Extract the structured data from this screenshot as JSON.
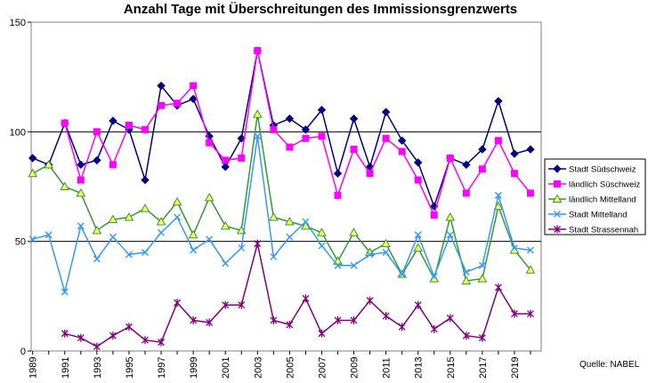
{
  "chart_data": {
    "type": "line",
    "title": "Anzahl Tage mit Überschreitungen des Immissionsgrenzwerts",
    "xlabel": "",
    "ylabel": "",
    "source": "Quelle: NABEL",
    "ylim": [
      0,
      150
    ],
    "yticks": [
      "0",
      "50",
      "100",
      "150"
    ],
    "gridlines_y": [
      50,
      100
    ],
    "x": [
      1989,
      1990,
      1991,
      1992,
      1993,
      1994,
      1995,
      1996,
      1997,
      1998,
      1999,
      2000,
      2001,
      2002,
      2003,
      2004,
      2005,
      2006,
      2007,
      2008,
      2009,
      2010,
      2011,
      2012,
      2013,
      2014,
      2015,
      2016,
      2017,
      2018,
      2019,
      2020
    ],
    "xtick_labels": [
      "1989",
      "1991",
      "1993",
      "1995",
      "1997",
      "1999",
      "2001",
      "2003",
      "2005",
      "2007",
      "2009",
      "2011",
      "2013",
      "2015",
      "2017",
      "2019"
    ],
    "legend_position": "right",
    "series": [
      {
        "name": "Stadt Südschweiz",
        "color": "#000080",
        "marker": "diamond",
        "values": [
          88,
          85,
          104,
          85,
          87,
          105,
          101,
          78,
          121,
          112,
          115,
          98,
          84,
          97,
          137,
          103,
          106,
          101,
          110,
          81,
          106,
          84,
          109,
          96,
          86,
          66,
          88,
          85,
          92,
          114,
          90,
          92
        ]
      },
      {
        "name": "ländlich Süschweiz",
        "color": "#ff00ff",
        "marker": "square",
        "values": [
          null,
          null,
          104,
          78,
          100,
          85,
          103,
          101,
          112,
          113,
          121,
          95,
          87,
          88,
          137,
          101,
          93,
          97,
          98,
          71,
          92,
          81,
          97,
          91,
          78,
          62,
          88,
          72,
          83,
          96,
          81,
          72
        ]
      },
      {
        "name": "ländlich Mittelland",
        "color": "#339933",
        "marker": "triangle",
        "values": [
          81,
          85,
          75,
          72,
          55,
          60,
          61,
          65,
          59,
          68,
          53,
          70,
          57,
          55,
          108,
          61,
          59,
          57,
          54,
          41,
          54,
          45,
          49,
          35,
          47,
          33,
          61,
          32,
          33,
          66,
          46,
          37
        ]
      },
      {
        "name": "Stadt Mittelland",
        "color": "#3399ff",
        "marker": "x",
        "values": [
          51,
          53,
          27,
          57,
          42,
          52,
          44,
          45,
          54,
          61,
          46,
          51,
          40,
          47,
          98,
          43,
          52,
          59,
          48,
          39,
          39,
          44,
          45,
          35,
          53,
          34,
          53,
          36,
          39,
          71,
          47,
          46
        ]
      },
      {
        "name": "Stadt Strassennah",
        "color": "#800080",
        "marker": "star",
        "values": [
          null,
          null,
          8,
          6,
          2,
          7,
          11,
          5,
          4,
          22,
          14,
          13,
          21,
          21,
          49,
          14,
          12,
          24,
          8,
          14,
          14,
          23,
          16,
          11,
          21,
          10,
          15,
          7,
          6,
          29,
          17,
          17
        ]
      }
    ]
  }
}
